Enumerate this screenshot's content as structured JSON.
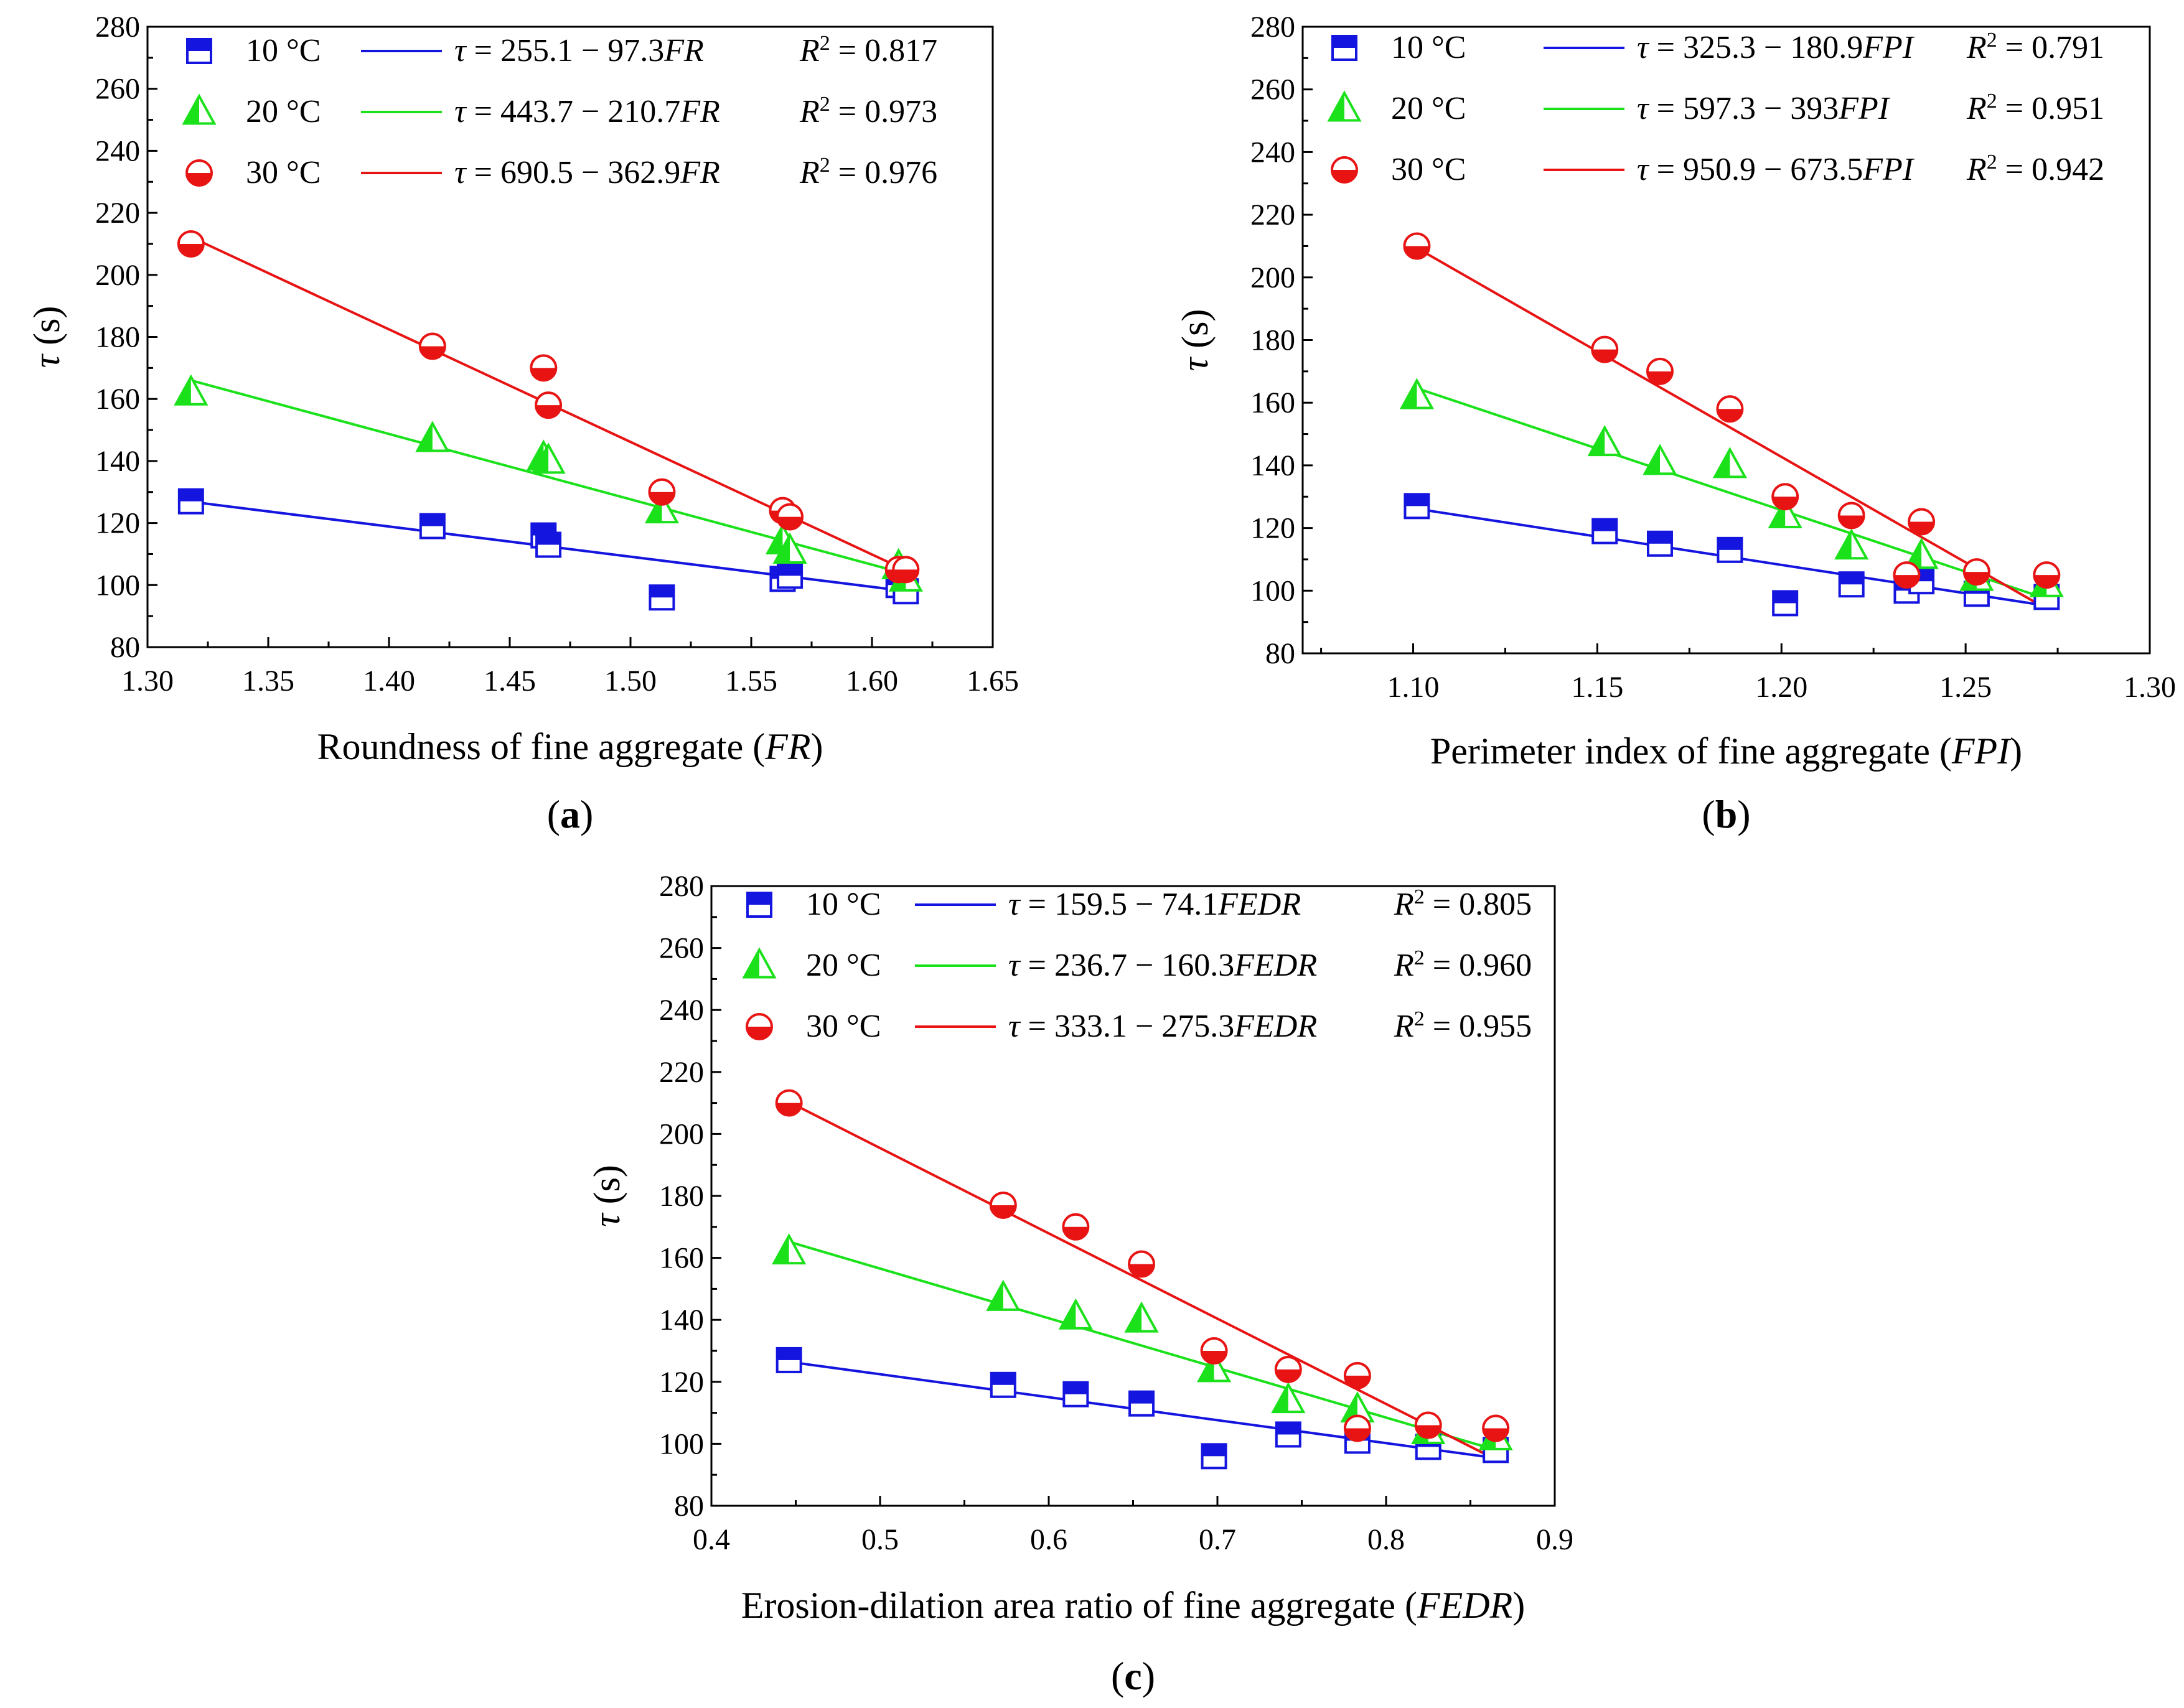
{
  "figure": {
    "panels": [
      {
        "label": "a"
      },
      {
        "label": "b"
      },
      {
        "label": "c"
      }
    ]
  },
  "chart_data": [
    {
      "type": "scatter",
      "panel": "a",
      "xlabel": "Roundness of fine aggregate",
      "xlabel_var": "FR",
      "ylabel_var": "τ",
      "ylabel_unit": "(s)",
      "xlim": [
        1.3,
        1.65
      ],
      "ylim": [
        80,
        280
      ],
      "xticks": [
        "1.30",
        "1.35",
        "1.40",
        "1.45",
        "1.50",
        "1.55",
        "1.60",
        "1.65"
      ],
      "yticks": [
        "80",
        "100",
        "120",
        "140",
        "160",
        "180",
        "200",
        "220",
        "240",
        "260",
        "280"
      ],
      "legend_position": "top-left",
      "series": [
        {
          "name": "10 °C",
          "marker": "square",
          "color": "#1515e0",
          "equation": "τ = 255.1 − 97.3",
          "equation_var": "FR",
          "r2": "0.817",
          "x": [
            1.318,
            1.418,
            1.464,
            1.466,
            1.513,
            1.563,
            1.566,
            1.611,
            1.614
          ],
          "y": [
            127,
            119,
            116,
            113,
            96,
            102,
            103,
            100,
            98
          ],
          "fit": {
            "intercept": 255.1,
            "slope": -97.3,
            "x_range": [
              1.318,
              1.614
            ]
          }
        },
        {
          "name": "20 °C",
          "marker": "triangle",
          "color": "#1be11b",
          "equation": "τ = 443.7 − 210.7",
          "equation_var": "FR",
          "r2": "0.973",
          "x": [
            1.318,
            1.418,
            1.464,
            1.466,
            1.513,
            1.563,
            1.566,
            1.611,
            1.614
          ],
          "y": [
            162,
            147,
            141,
            140,
            124,
            114,
            111,
            106,
            102
          ],
          "fit": {
            "intercept": 443.7,
            "slope": -210.7,
            "x_range": [
              1.318,
              1.614
            ]
          }
        },
        {
          "name": "30 °C",
          "marker": "circle",
          "color": "#e81414",
          "equation": "τ = 690.5 − 362.9",
          "equation_var": "FR",
          "r2": "0.976",
          "x": [
            1.318,
            1.418,
            1.464,
            1.466,
            1.513,
            1.563,
            1.566,
            1.611,
            1.614
          ],
          "y": [
            210,
            177,
            170,
            158,
            130,
            124,
            122,
            105,
            105
          ],
          "fit": {
            "intercept": 690.5,
            "slope": -362.9,
            "x_range": [
              1.318,
              1.614
            ]
          }
        }
      ]
    },
    {
      "type": "scatter",
      "panel": "b",
      "xlabel": "Perimeter index of fine aggregate",
      "xlabel_var": "FPI",
      "ylabel_var": "τ",
      "ylabel_unit": "(s)",
      "xlim": [
        1.07,
        1.3
      ],
      "ylim": [
        80,
        280
      ],
      "xticks": [
        "1.10",
        "1.15",
        "1.20",
        "1.25",
        "1.30"
      ],
      "xtick_values": [
        1.1,
        1.15,
        1.2,
        1.25,
        1.3
      ],
      "yticks": [
        "80",
        "100",
        "120",
        "140",
        "160",
        "180",
        "200",
        "220",
        "240",
        "260",
        "280"
      ],
      "legend_position": "top-left",
      "series": [
        {
          "name": "10 °C",
          "marker": "square",
          "color": "#1515e0",
          "equation": "τ = 325.3 − 180.9",
          "equation_var": "FPI",
          "r2": "0.791",
          "x": [
            1.101,
            1.152,
            1.167,
            1.186,
            1.201,
            1.219,
            1.234,
            1.238,
            1.253,
            1.272
          ],
          "y": [
            127,
            119,
            115,
            113,
            96,
            102,
            100,
            103,
            99,
            98
          ],
          "fit": {
            "intercept": 325.3,
            "slope": -180.9,
            "x_range": [
              1.101,
              1.272
            ]
          }
        },
        {
          "name": "20 °C",
          "marker": "triangle",
          "color": "#1be11b",
          "equation": "τ = 597.3 − 393",
          "equation_var": "FPI",
          "r2": "0.951",
          "x": [
            1.101,
            1.152,
            1.167,
            1.186,
            1.201,
            1.219,
            1.238,
            1.253,
            1.272
          ],
          "y": [
            162,
            147,
            141,
            140,
            124,
            114,
            111,
            104,
            102
          ],
          "fit": {
            "intercept": 597.3,
            "slope": -393.0,
            "x_range": [
              1.101,
              1.272
            ]
          }
        },
        {
          "name": "30 °C",
          "marker": "circle",
          "color": "#e81414",
          "equation": "τ = 950.9 − 673.5",
          "equation_var": "FPI",
          "r2": "0.942",
          "x": [
            1.101,
            1.152,
            1.167,
            1.186,
            1.201,
            1.219,
            1.234,
            1.238,
            1.253,
            1.272
          ],
          "y": [
            210,
            177,
            170,
            158,
            130,
            124,
            105,
            122,
            106,
            105
          ],
          "fit": {
            "intercept": 950.9,
            "slope": -673.5,
            "x_range": [
              1.101,
              1.272
            ]
          }
        }
      ]
    },
    {
      "type": "scatter",
      "panel": "c",
      "xlabel": "Erosion-dilation area ratio of fine aggregate",
      "xlabel_var": "FEDR",
      "ylabel_var": "τ",
      "ylabel_unit": "(s)",
      "xlim": [
        0.4,
        0.9
      ],
      "ylim": [
        80,
        280
      ],
      "xticks": [
        "0.4",
        "0.5",
        "0.6",
        "0.7",
        "0.8",
        "0.9"
      ],
      "yticks": [
        "80",
        "100",
        "120",
        "140",
        "160",
        "180",
        "200",
        "220",
        "240",
        "260",
        "280"
      ],
      "legend_position": "top-left",
      "series": [
        {
          "name": "10 °C",
          "marker": "square",
          "color": "#1515e0",
          "equation": "τ = 159.5 − 74.1",
          "equation_var": "FEDR",
          "r2": "0.805",
          "x": [
            0.446,
            0.573,
            0.616,
            0.655,
            0.698,
            0.742,
            0.783,
            0.825,
            0.865
          ],
          "y": [
            127,
            119,
            116,
            113,
            96,
            103,
            101,
            99,
            98
          ],
          "fit": {
            "intercept": 159.5,
            "slope": -74.1,
            "x_range": [
              0.446,
              0.865
            ]
          }
        },
        {
          "name": "20 °C",
          "marker": "triangle",
          "color": "#1be11b",
          "equation": "τ = 236.7 − 160.3",
          "equation_var": "FEDR",
          "r2": "0.960",
          "x": [
            0.446,
            0.573,
            0.616,
            0.655,
            0.698,
            0.742,
            0.783,
            0.825,
            0.865
          ],
          "y": [
            162,
            147,
            141,
            140,
            124,
            114,
            111,
            104,
            102
          ],
          "fit": {
            "intercept": 236.7,
            "slope": -160.3,
            "x_range": [
              0.446,
              0.865
            ]
          }
        },
        {
          "name": "30 °C",
          "marker": "circle",
          "color": "#e81414",
          "equation": "τ = 333.1 − 275.3",
          "equation_var": "FEDR",
          "r2": "0.955",
          "x": [
            0.446,
            0.573,
            0.616,
            0.655,
            0.698,
            0.742,
            0.783,
            0.783,
            0.825,
            0.865
          ],
          "y": [
            210,
            177,
            170,
            158,
            130,
            124,
            122,
            105,
            106,
            105
          ],
          "fit": {
            "intercept": 333.1,
            "slope": -275.3,
            "x_range": [
              0.446,
              0.865
            ]
          }
        }
      ]
    }
  ]
}
